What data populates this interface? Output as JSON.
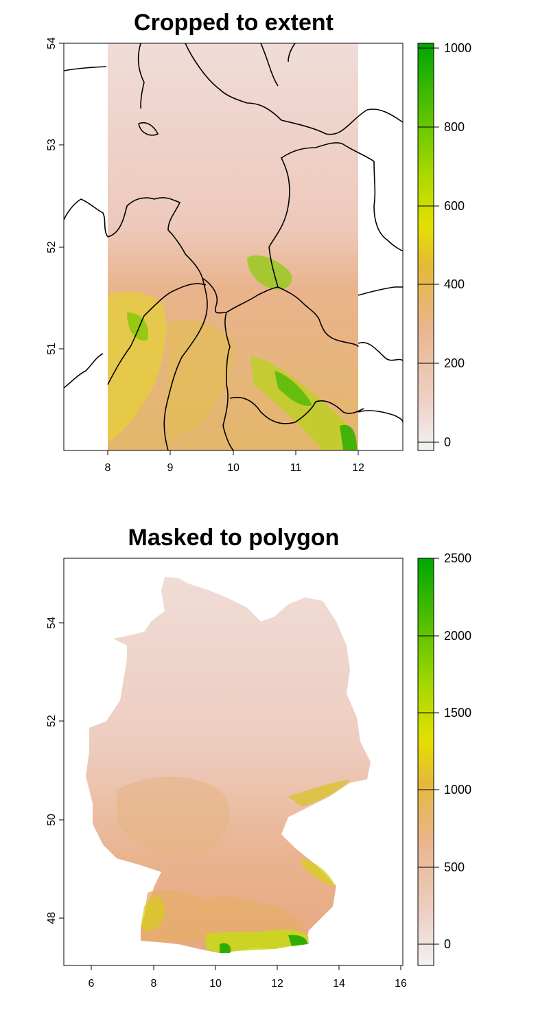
{
  "panels": [
    {
      "title": "Cropped to extent",
      "x_ticks": [
        "8",
        "9",
        "10",
        "11",
        "12"
      ],
      "y_ticks": [
        "51",
        "52",
        "53",
        "54"
      ],
      "legend_ticks": [
        "0",
        "200",
        "400",
        "600",
        "800",
        "1000"
      ],
      "legend_range": [
        0,
        1000
      ]
    },
    {
      "title": "Masked to polygon",
      "x_ticks": [
        "6",
        "8",
        "10",
        "12",
        "14",
        "16"
      ],
      "y_ticks": [
        "48",
        "50",
        "52",
        "54"
      ],
      "legend_ticks": [
        "0",
        "500",
        "1000",
        "1500",
        "2000",
        "2500"
      ],
      "legend_range": [
        0,
        2500
      ]
    }
  ],
  "colors": {
    "low": "#f2f2f2",
    "light": "#eec3b6",
    "mid_low": "#e7ae7c",
    "mid": "#e3c220",
    "yellow": "#d8e600",
    "high": "#00a600",
    "boundary": "#000000"
  }
}
